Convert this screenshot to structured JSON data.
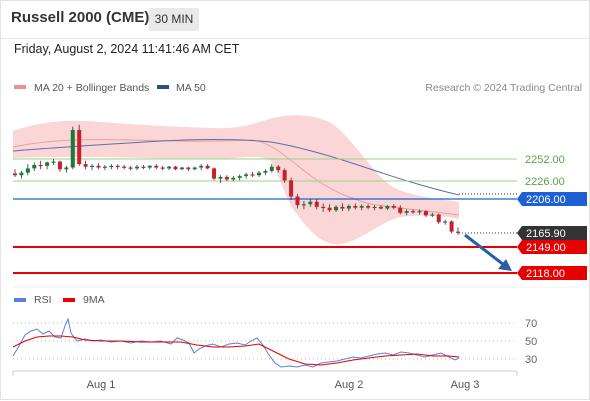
{
  "header": {
    "title": "Russell 2000 (CME)",
    "timeframe": "30 MIN"
  },
  "datetime": "Friday, August 2, 2024 11:41:46 AM CET",
  "legend": {
    "bb_label": "MA 20 + Bollinger Bands",
    "ma50_label": "MA 50",
    "copyright": "Research © 2024 Trading Central",
    "rsi_label": "RSI",
    "rsi_ma_label": "9MA"
  },
  "levels": {
    "r2": "2252.00",
    "r1": "2226.00",
    "pivot": "2206.00",
    "last": "2165.90",
    "s1": "2149.00",
    "s2": "2118.00"
  },
  "rsi_ticks": [
    "70",
    "50",
    "30"
  ],
  "x_ticks": [
    "Aug 1",
    "Aug 2",
    "Aug 3"
  ],
  "colors": {
    "pivot": "#1f5fd6",
    "support": "#e60000",
    "resistance": "#7ec26a",
    "last_price_bg": "#333333",
    "up_candle": "#1a7a3a",
    "down_candle": "#c8202a",
    "ma50": "#5a6fa8",
    "rsi_line": "#5b7fd6",
    "rsi_ma": "#e60000",
    "bb_fill": "#f9cccc",
    "arrow": "#2a5fa8"
  },
  "chart_data": {
    "type": "candlestick",
    "instrument": "Russell 2000 (CME)",
    "interval": "30 MIN",
    "x_labels": [
      "Aug 1",
      "Aug 2",
      "Aug 3"
    ],
    "price_levels": [
      2252.0,
      2226.0,
      2206.0,
      2165.9,
      2149.0,
      2118.0
    ],
    "ohlc_approx": [
      [
        2235,
        2240,
        2231,
        2233
      ],
      [
        2233,
        2238,
        2229,
        2236
      ],
      [
        2236,
        2246,
        2233,
        2241
      ],
      [
        2241,
        2248,
        2238,
        2245
      ],
      [
        2245,
        2250,
        2240,
        2244
      ],
      [
        2244,
        2249,
        2240,
        2248
      ],
      [
        2248,
        2252,
        2245,
        2249
      ],
      [
        2249,
        2250,
        2237,
        2240
      ],
      [
        2240,
        2244,
        2236,
        2242
      ],
      [
        2242,
        2290,
        2240,
        2286
      ],
      [
        2286,
        2292,
        2244,
        2246
      ],
      [
        2246,
        2250,
        2240,
        2243
      ],
      [
        2243,
        2246,
        2239,
        2244
      ],
      [
        2244,
        2247,
        2240,
        2242
      ],
      [
        2242,
        2245,
        2239,
        2243
      ],
      [
        2243,
        2246,
        2240,
        2244
      ],
      [
        2244,
        2246,
        2240,
        2243
      ],
      [
        2243,
        2245,
        2240,
        2242
      ],
      [
        2242,
        2244,
        2239,
        2241
      ],
      [
        2241,
        2245,
        2239,
        2243
      ],
      [
        2243,
        2245,
        2240,
        2242
      ],
      [
        2242,
        2245,
        2240,
        2244
      ],
      [
        2244,
        2246,
        2240,
        2242
      ],
      [
        2242,
        2244,
        2239,
        2241
      ],
      [
        2241,
        2244,
        2239,
        2243
      ],
      [
        2243,
        2244,
        2239,
        2240
      ],
      [
        2240,
        2243,
        2239,
        2242
      ],
      [
        2242,
        2243,
        2238,
        2240
      ],
      [
        2240,
        2243,
        2239,
        2242
      ],
      [
        2242,
        2246,
        2239,
        2244
      ],
      [
        2244,
        2246,
        2240,
        2241
      ],
      [
        2241,
        2242,
        2227,
        2229
      ],
      [
        2229,
        2233,
        2224,
        2231
      ],
      [
        2231,
        2233,
        2226,
        2228
      ],
      [
        2228,
        2232,
        2226,
        2230
      ],
      [
        2230,
        2234,
        2227,
        2232
      ],
      [
        2232,
        2236,
        2229,
        2234
      ],
      [
        2234,
        2237,
        2231,
        2233
      ],
      [
        2233,
        2238,
        2231,
        2236
      ],
      [
        2236,
        2240,
        2233,
        2238
      ],
      [
        2238,
        2246,
        2236,
        2243
      ],
      [
        2243,
        2245,
        2236,
        2239
      ],
      [
        2239,
        2241,
        2224,
        2227
      ],
      [
        2227,
        2230,
        2204,
        2208
      ],
      [
        2208,
        2211,
        2194,
        2198
      ],
      [
        2198,
        2203,
        2193,
        2199
      ],
      [
        2199,
        2205,
        2196,
        2202
      ],
      [
        2202,
        2205,
        2193,
        2196
      ],
      [
        2196,
        2200,
        2190,
        2195
      ],
      [
        2195,
        2199,
        2190,
        2192
      ],
      [
        2192,
        2198,
        2190,
        2196
      ],
      [
        2196,
        2200,
        2191,
        2194
      ],
      [
        2194,
        2199,
        2191,
        2197
      ],
      [
        2197,
        2200,
        2193,
        2195
      ],
      [
        2195,
        2199,
        2192,
        2197
      ],
      [
        2197,
        2199,
        2193,
        2195
      ],
      [
        2195,
        2198,
        2192,
        2196
      ],
      [
        2196,
        2198,
        2193,
        2194
      ],
      [
        2194,
        2198,
        2192,
        2197
      ],
      [
        2197,
        2199,
        2193,
        2195
      ],
      [
        2195,
        2198,
        2187,
        2189
      ],
      [
        2189,
        2193,
        2186,
        2191
      ],
      [
        2191,
        2193,
        2188,
        2190
      ],
      [
        2190,
        2193,
        2187,
        2191
      ],
      [
        2191,
        2192,
        2184,
        2186
      ],
      [
        2186,
        2189,
        2184,
        2187
      ],
      [
        2187,
        2188,
        2176,
        2178
      ],
      [
        2178,
        2181,
        2175,
        2179
      ],
      [
        2179,
        2180,
        2165,
        2167
      ],
      [
        2167,
        2172,
        2163,
        2166
      ]
    ],
    "ma20_bollinger": true,
    "ma50": true,
    "rsi_panel": {
      "levels": [
        70,
        50,
        30
      ]
    }
  }
}
